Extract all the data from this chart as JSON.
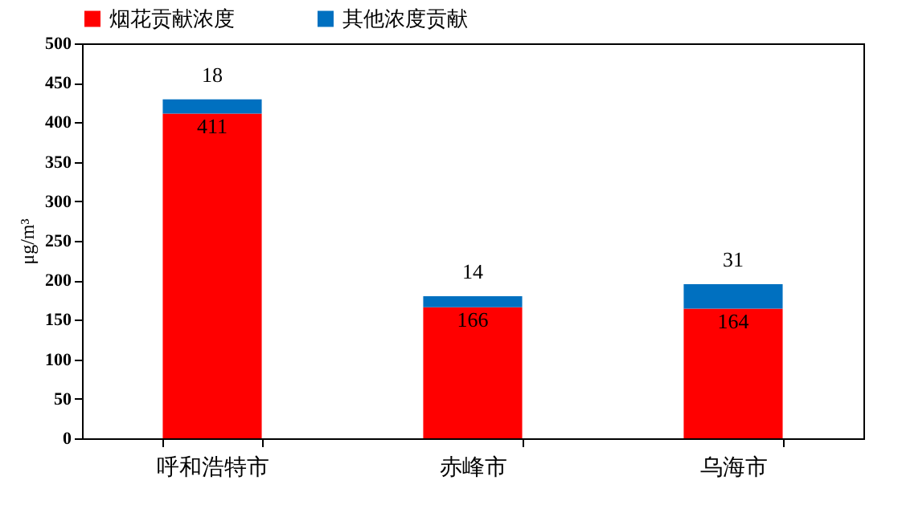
{
  "chart_data": {
    "type": "bar",
    "stacked": true,
    "ylabel": "μg/m³",
    "categories": [
      "呼和浩特市",
      "赤峰市",
      "乌海市"
    ],
    "series": [
      {
        "name": "烟花贡献浓度",
        "color": "#ff0000",
        "values": [
          411,
          166,
          164
        ]
      },
      {
        "name": "其他浓度贡献",
        "color": "#0070c0",
        "values": [
          18,
          14,
          31
        ]
      }
    ],
    "ylim": [
      0,
      500
    ],
    "yticks": [
      0,
      50,
      100,
      150,
      200,
      250,
      300,
      350,
      400,
      450,
      500
    ],
    "data_labels": true,
    "legend": "top",
    "grid": false
  }
}
